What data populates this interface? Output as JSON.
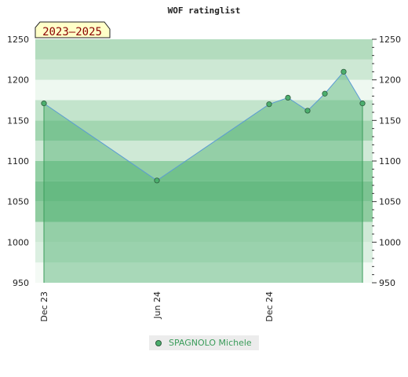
{
  "chart_data": {
    "type": "line",
    "title": "WOF ratinglist",
    "badge": "2023–2025",
    "ylim": [
      950,
      1250
    ],
    "yticks": [
      "950",
      "1000",
      "1050",
      "1100",
      "1150",
      "1200",
      "1250"
    ],
    "xtick_labels": [
      "Dec 23",
      "Jun 24",
      "Dec 24"
    ],
    "series": [
      {
        "name": "SPAGNOLO Michele",
        "values": [
          1171,
          1076,
          1170,
          1178,
          1162,
          1183,
          1210,
          1171
        ]
      }
    ],
    "grid": true,
    "legend_position": "bottom",
    "colors": {
      "line": "#5b9bd5",
      "fill": "#4caf6e",
      "marker": "#4caf6e",
      "marker_edge": "#2d5a3c",
      "legend_text": "#3a9c5a",
      "badge_bg": "#ffffc8",
      "badge_text": "#8b0000"
    }
  }
}
